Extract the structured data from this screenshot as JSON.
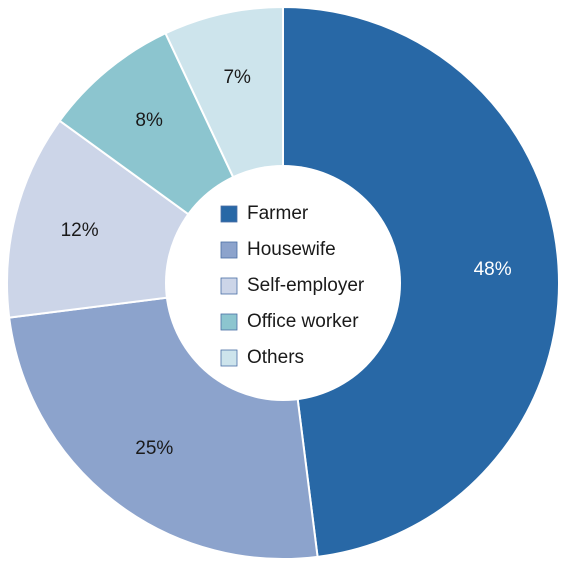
{
  "chart_data": {
    "type": "pie",
    "variant": "donut",
    "slices": [
      {
        "category": "Farmer",
        "value": 48,
        "label": "48%",
        "color": "#2868a6",
        "label_color": "#ffffff"
      },
      {
        "category": "Housewife",
        "value": 25,
        "label": "25%",
        "color": "#8ca3cc",
        "label_color": "#1a1a1a"
      },
      {
        "category": "Self-employer",
        "value": 12,
        "label": "12%",
        "color": "#ccd5e8",
        "label_color": "#1a1a1a"
      },
      {
        "category": "Office worker",
        "value": 8,
        "label": "8%",
        "color": "#8cc5cf",
        "label_color": "#1a1a1a"
      },
      {
        "category": "Others",
        "value": 7,
        "label": "7%",
        "color": "#cde4ec",
        "label_color": "#1a1a1a"
      }
    ],
    "legend": {
      "placement": "center",
      "entries": [
        "Farmer",
        "Housewife",
        "Self-employer",
        "Office worker",
        "Others"
      ]
    },
    "title": "",
    "start": "12 o'clock",
    "direction": "clockwise"
  }
}
